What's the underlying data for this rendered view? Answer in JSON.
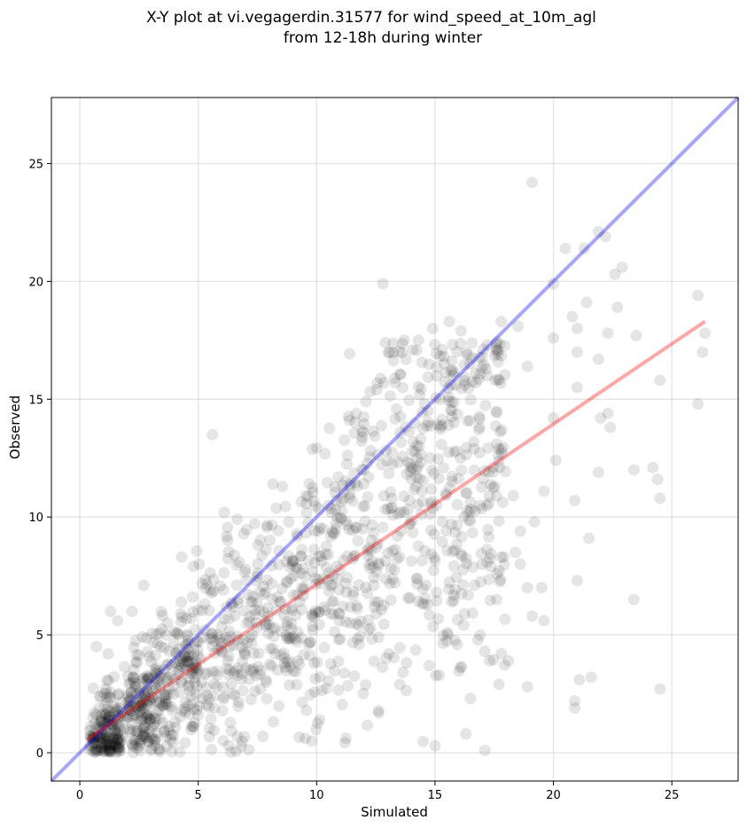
{
  "chart_data": {
    "type": "scatter",
    "title_line1": "X-Y plot at vi.vegagerdin.31577 for wind_speed_at_10m_agl",
    "title_line2": "from 12-18h during winter",
    "xlabel": "Simulated",
    "ylabel": "Observed",
    "xlim": [
      -1.2,
      27.8
    ],
    "ylim": [
      -1.2,
      27.8
    ],
    "xticks": [
      0,
      5,
      10,
      15,
      20,
      25
    ],
    "yticks": [
      0,
      5,
      10,
      15,
      20,
      25
    ],
    "grid": true,
    "point_color": "#000000",
    "point_alpha": 0.1,
    "identity_line": {
      "color": "#0000ff",
      "alpha": 0.35,
      "from": [
        -1.2,
        -1.2
      ],
      "to": [
        27.8,
        27.8
      ]
    },
    "regression_line": {
      "color": "#ff0000",
      "alpha": 0.35,
      "from": [
        0.3,
        0.55
      ],
      "to": [
        26.4,
        18.3
      ]
    },
    "points_explicit": [
      [
        19.1,
        24.2
      ],
      [
        12.8,
        19.9
      ],
      [
        21.3,
        21.4
      ],
      [
        21.9,
        22.1
      ],
      [
        22.2,
        21.9
      ],
      [
        20.0,
        19.9
      ],
      [
        22.6,
        20.3
      ],
      [
        22.9,
        20.6
      ],
      [
        26.1,
        19.4
      ],
      [
        26.4,
        17.8
      ],
      [
        26.3,
        17.0
      ],
      [
        26.1,
        14.8
      ],
      [
        24.5,
        15.8
      ],
      [
        24.2,
        12.1
      ],
      [
        24.4,
        11.6
      ],
      [
        24.5,
        10.8
      ],
      [
        23.4,
        12.0
      ],
      [
        23.4,
        6.5
      ],
      [
        24.5,
        2.7
      ],
      [
        21.0,
        7.3
      ],
      [
        21.6,
        3.2
      ],
      [
        21.1,
        3.1
      ],
      [
        20.9,
        2.2
      ],
      [
        20.9,
        1.9
      ],
      [
        21.5,
        9.1
      ],
      [
        20.9,
        10.7
      ],
      [
        21.0,
        15.5
      ],
      [
        21.0,
        17.0
      ],
      [
        21.4,
        19.1
      ],
      [
        20.8,
        18.5
      ],
      [
        21.0,
        18.0
      ],
      [
        21.9,
        16.7
      ],
      [
        22.3,
        17.8
      ],
      [
        22.7,
        18.9
      ],
      [
        23.5,
        17.7
      ],
      [
        22.0,
        14.2
      ],
      [
        22.3,
        14.4
      ],
      [
        22.4,
        13.8
      ],
      [
        21.9,
        11.9
      ],
      [
        20.0,
        17.6
      ],
      [
        20.1,
        12.4
      ],
      [
        20.0,
        14.2
      ],
      [
        19.6,
        11.1
      ],
      [
        19.2,
        9.8
      ],
      [
        19.1,
        5.8
      ],
      [
        19.6,
        5.6
      ],
      [
        18.9,
        2.8
      ],
      [
        19.5,
        7.0
      ],
      [
        18.9,
        7.0
      ],
      [
        18.6,
        8.0
      ],
      [
        17.1,
        0.1
      ],
      [
        16.3,
        0.8
      ],
      [
        15.0,
        0.3
      ],
      [
        5.6,
        13.5
      ],
      [
        6.1,
        10.2
      ],
      [
        4.3,
        8.3
      ],
      [
        2.7,
        7.1
      ],
      [
        2.2,
        6.0
      ],
      [
        1.3,
        6.0
      ],
      [
        1.6,
        5.6
      ],
      [
        0.7,
        4.5
      ],
      [
        1.2,
        4.2
      ],
      [
        12.9,
        17.4
      ],
      [
        13.7,
        17.5
      ],
      [
        14.3,
        17.5
      ],
      [
        14.9,
        18.0
      ],
      [
        15.3,
        17.1
      ],
      [
        15.6,
        18.3
      ],
      [
        16.1,
        17.9
      ],
      [
        17.8,
        18.3
      ],
      [
        18.5,
        18.1
      ],
      [
        18.9,
        16.4
      ],
      [
        17.6,
        6.5
      ],
      [
        17.1,
        4.3
      ],
      [
        16.5,
        2.3
      ],
      [
        16.9,
        5.0
      ],
      [
        17.3,
        3.9
      ],
      [
        17.7,
        2.9
      ],
      [
        18.1,
        3.9
      ],
      [
        18.3,
        10.9
      ],
      [
        18.6,
        9.4
      ],
      [
        18.4,
        8.5
      ],
      [
        20.5,
        21.4
      ]
    ],
    "points_generated": {
      "count": 1400,
      "seed": 31577,
      "model": "observed = simulated * r + noise, clipped to >= 0",
      "description": "dense point cloud along the regression line from simulated 0 to 18"
    }
  }
}
